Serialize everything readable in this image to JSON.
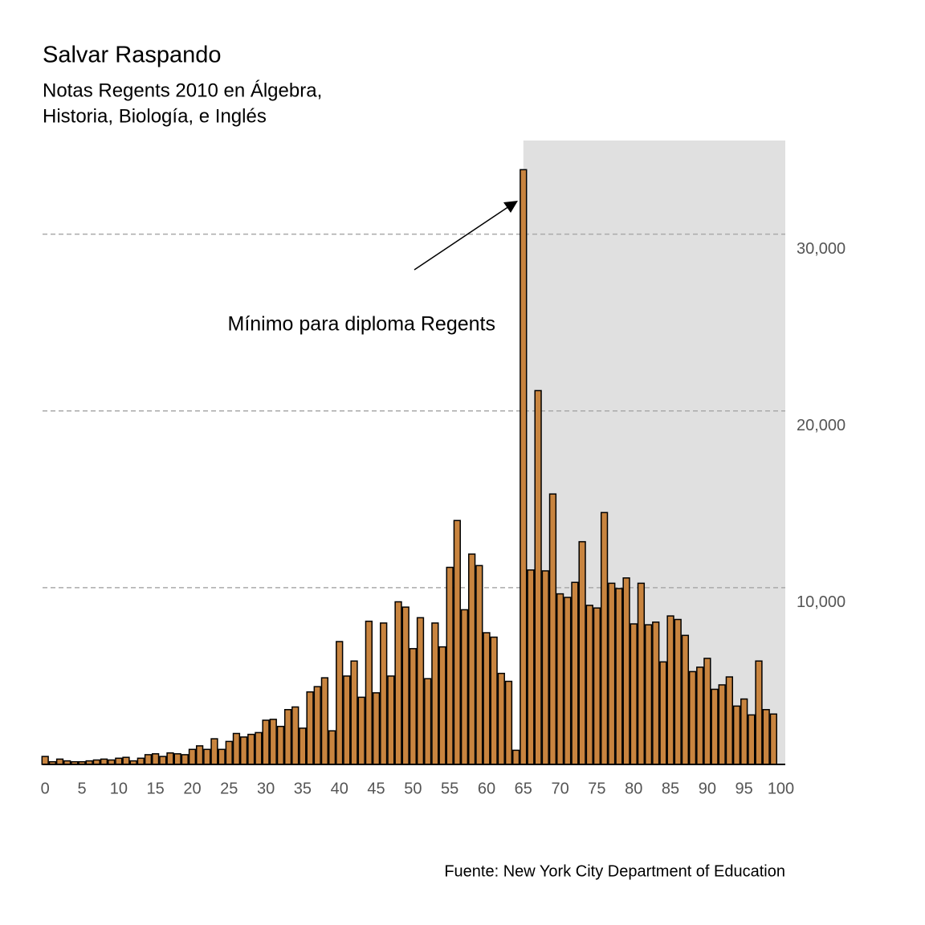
{
  "chart_data": {
    "type": "bar",
    "title": "Salvar Raspando",
    "subtitle": [
      "Notas Regents 2010 en Álgebra,",
      "Historia, Biología, e Inglés"
    ],
    "caption": "Fuente: New York City Department of Education",
    "annotation": "Mínimo para diploma Regents",
    "x": [
      0,
      1,
      2,
      3,
      4,
      5,
      6,
      7,
      8,
      9,
      10,
      11,
      12,
      13,
      14,
      15,
      16,
      17,
      18,
      19,
      20,
      21,
      22,
      23,
      24,
      25,
      26,
      27,
      28,
      29,
      30,
      31,
      32,
      33,
      34,
      35,
      36,
      37,
      38,
      39,
      40,
      41,
      42,
      43,
      44,
      45,
      46,
      47,
      48,
      49,
      50,
      51,
      52,
      53,
      54,
      55,
      56,
      57,
      58,
      59,
      60,
      61,
      62,
      63,
      64,
      65,
      66,
      67,
      68,
      69,
      70,
      71,
      72,
      73,
      74,
      75,
      76,
      77,
      78,
      79,
      80,
      81,
      82,
      83,
      84,
      85,
      86,
      87,
      88,
      89,
      90,
      91,
      92,
      93,
      94,
      95,
      96,
      97,
      98,
      99
    ],
    "values": [
      450,
      150,
      300,
      200,
      150,
      150,
      200,
      250,
      300,
      250,
      350,
      400,
      200,
      350,
      550,
      600,
      450,
      650,
      600,
      550,
      850,
      1050,
      850,
      1450,
      850,
      1300,
      1750,
      1550,
      1700,
      1800,
      2500,
      2550,
      2150,
      3100,
      3250,
      2050,
      4100,
      4400,
      4900,
      1900,
      6950,
      5000,
      5850,
      3800,
      8100,
      4050,
      8000,
      5000,
      9200,
      8900,
      6550,
      8300,
      4850,
      8000,
      6650,
      11150,
      13800,
      8750,
      11900,
      11250,
      7450,
      7200,
      5150,
      4700,
      800,
      33650,
      11000,
      21150,
      10950,
      15300,
      9650,
      9450,
      10300,
      12600,
      9000,
      8850,
      14250,
      10250,
      9950,
      10550,
      7950,
      10250,
      7900,
      8050,
      5800,
      8400,
      8200,
      7300,
      5250,
      5500,
      6000,
      4250,
      4500,
      4950,
      3300,
      3700,
      2800,
      5850,
      3100,
      2850
    ],
    "color": "#c8843f",
    "highlight_range": [
      65,
      100.6
    ],
    "highlight_color": "#e0e0e0",
    "xlim": [
      -0.35,
      100.6
    ],
    "xticks": [
      0,
      5,
      10,
      15,
      20,
      25,
      30,
      35,
      40,
      45,
      50,
      55,
      60,
      65,
      70,
      75,
      80,
      85,
      90,
      95,
      100
    ],
    "ylim": [
      0,
      35300
    ],
    "yticks": [
      {
        "value": 10000,
        "label": "10,000"
      },
      {
        "value": 20000,
        "label": "20,000"
      },
      {
        "value": 30000,
        "label": "30,000"
      }
    ],
    "grid": true,
    "y_axis_side": "right"
  }
}
